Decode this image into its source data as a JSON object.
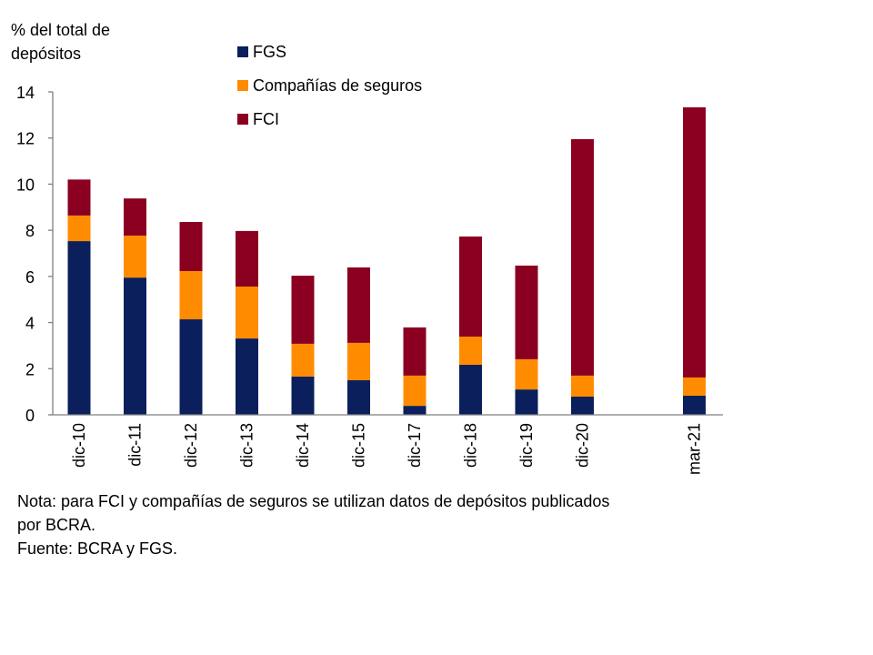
{
  "chart_data": {
    "type": "bar",
    "stacked": true,
    "ylabel": "% del total de depósitos",
    "ylabel_lines": [
      "% del total de",
      "depósitos"
    ],
    "ylim": [
      0,
      14
    ],
    "yticks": [
      0,
      2,
      4,
      6,
      8,
      10,
      12,
      14
    ],
    "grid": false,
    "legend_position": "top-center",
    "categories": [
      "dic-10",
      "dic-11",
      "dic-12",
      "dic-13",
      "dic-14",
      "dic-15",
      "dic-17",
      "dic-18",
      "dic-19",
      "dic-20",
      "mar-21"
    ],
    "series": [
      {
        "name": "FGS",
        "color": "#0b1f5c",
        "values": [
          7.53,
          5.95,
          4.14,
          3.31,
          1.66,
          1.5,
          0.39,
          2.17,
          1.1,
          0.79,
          0.83
        ]
      },
      {
        "name": "Compañías de seguros",
        "color": "#ff8c00",
        "values": [
          1.11,
          1.82,
          2.09,
          2.25,
          1.42,
          1.62,
          1.31,
          1.22,
          1.31,
          0.91,
          0.79
        ]
      },
      {
        "name": "FCI",
        "color": "#8b0020",
        "values": [
          1.56,
          1.61,
          2.13,
          2.41,
          2.95,
          3.27,
          2.09,
          4.34,
          4.06,
          10.25,
          11.71
        ]
      }
    ]
  },
  "notes": {
    "line1": "Nota: para FCI y compañías de seguros se utilizan datos de depósitos publicados",
    "line2": "por BCRA.",
    "source": "Fuente: BCRA y FGS."
  }
}
